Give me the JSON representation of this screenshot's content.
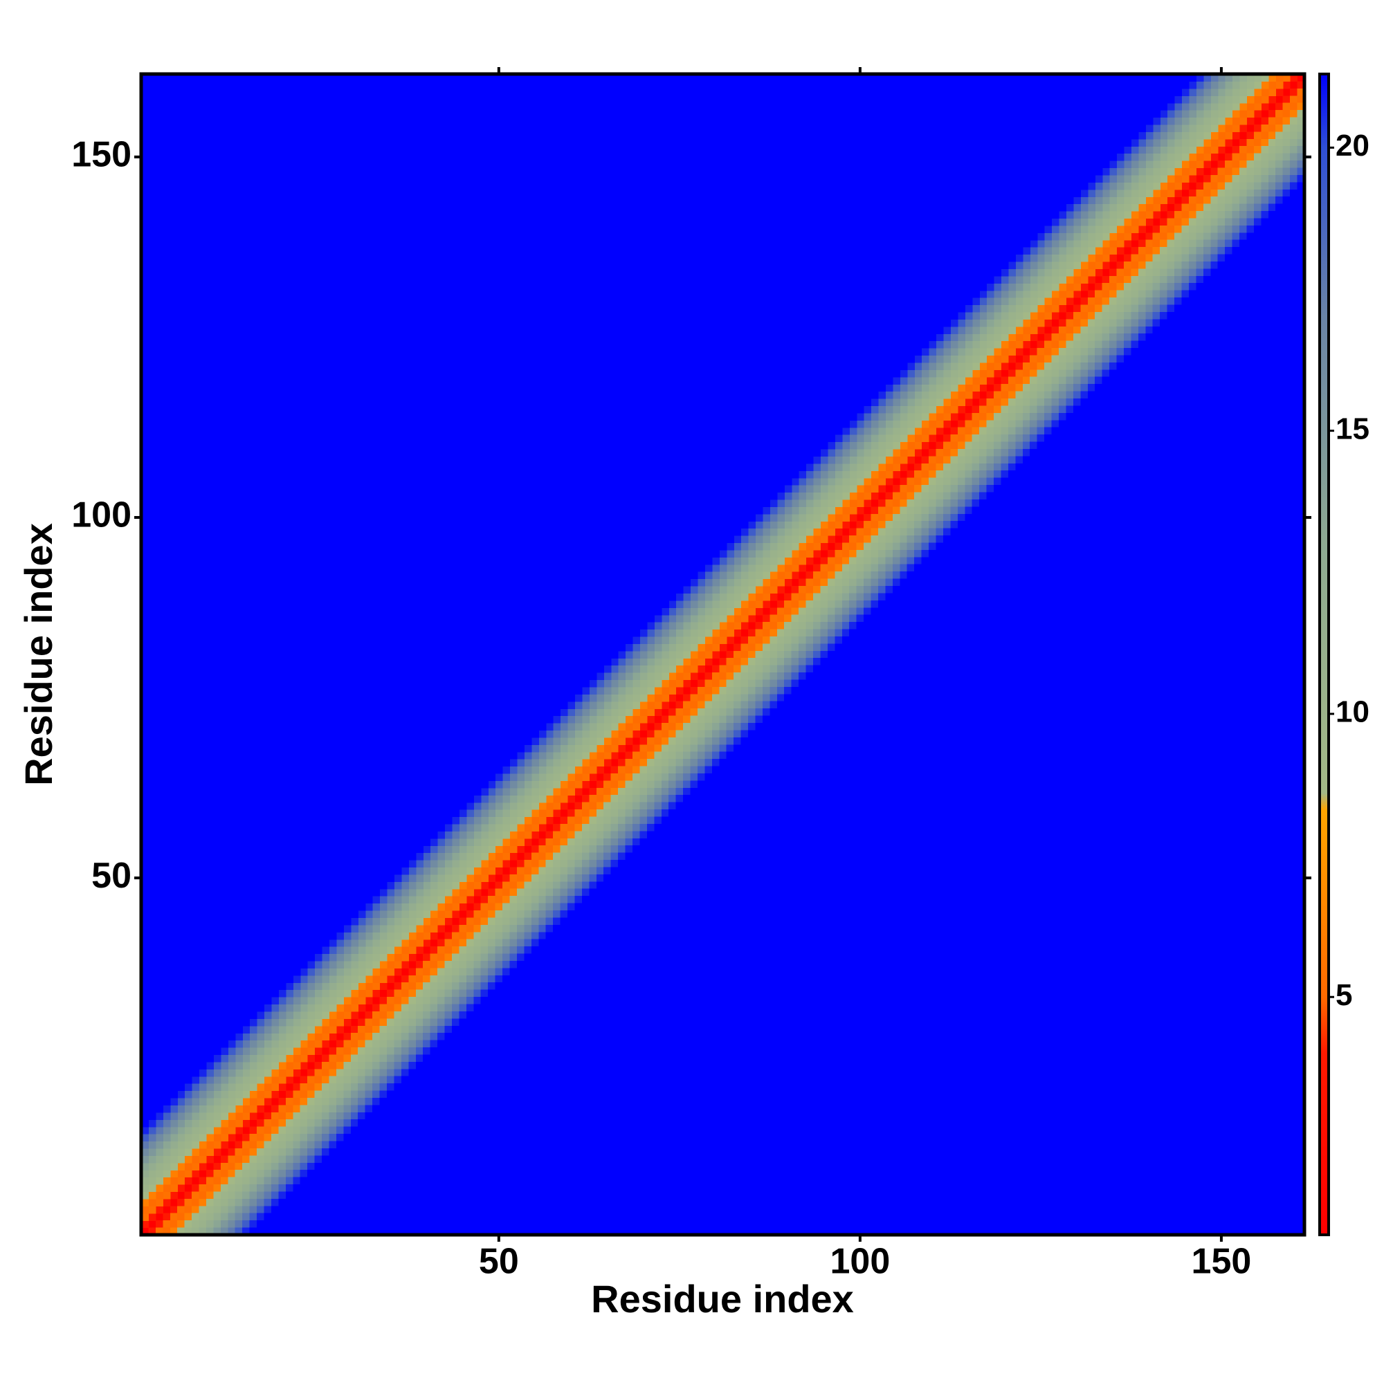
{
  "chart_data": {
    "type": "heatmap",
    "x_label": "Residue index",
    "y_label": "Residue index",
    "xlim": [
      0.5,
      161.5
    ],
    "ylim": [
      0.5,
      161.5
    ],
    "xticks": [
      50,
      100,
      150
    ],
    "yticks": [
      50,
      100,
      150
    ],
    "separation": [
      0,
      1,
      2,
      3,
      4,
      5,
      6,
      7,
      8,
      9,
      10,
      11,
      12,
      13,
      14,
      15
    ],
    "values": [
      0,
      3.8,
      5.4,
      5.1,
      6.2,
      8.6,
      9.9,
      10.5,
      11.8,
      13.3,
      14.8,
      16.2,
      17.6,
      19.2,
      20.7,
      21.3
    ],
    "zlim": [
      0.8,
      21.3
    ],
    "zticks": [
      5,
      10,
      15,
      20
    ],
    "colorscale": [
      [
        0.8,
        "#ff0000"
      ],
      [
        4,
        "#ff1a00"
      ],
      [
        5,
        "#ff6a00"
      ],
      [
        8.3,
        "#ffa500"
      ],
      [
        8.6,
        "#a3b886"
      ],
      [
        13,
        "#8ea992"
      ],
      [
        17,
        "#6a84a6"
      ],
      [
        20,
        "#2f4fd6"
      ],
      [
        21.3,
        "#0000ff"
      ]
    ]
  }
}
